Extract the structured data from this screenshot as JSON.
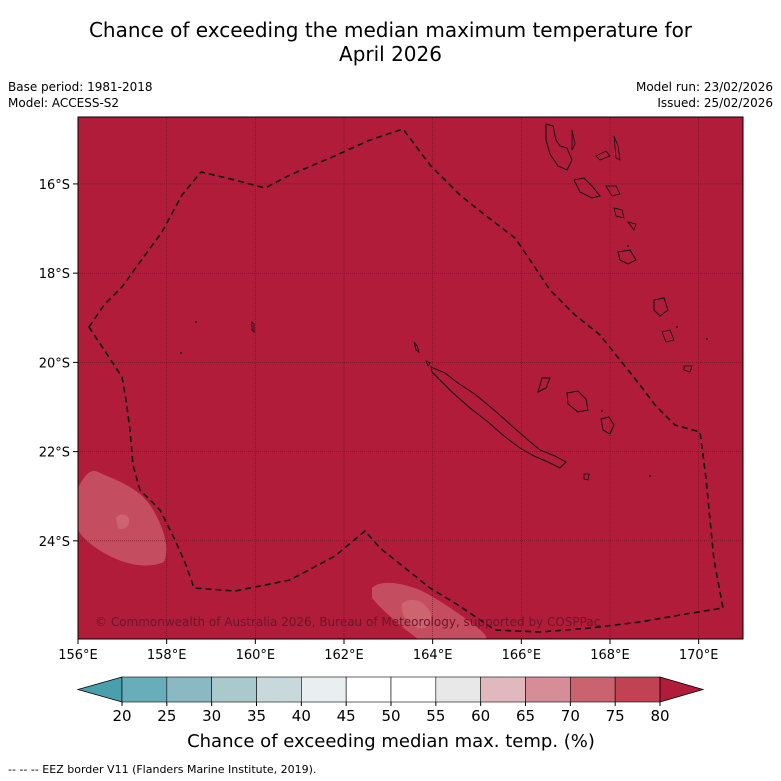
{
  "header": {
    "title_line1": "Chance of exceeding the median maximum temperature for",
    "title_line2": "April 2026",
    "base_period": "Base period: 1981-2018",
    "model": "Model: ACCESS-S2",
    "model_run": "Model run: 23/02/2026",
    "issued": "Issued: 25/02/2026"
  },
  "map": {
    "lat_labels": [
      "16°S",
      "18°S",
      "20°S",
      "22°S",
      "24°S"
    ],
    "lat_values": [
      -16,
      -18,
      -20,
      -22,
      -24
    ],
    "lon_labels": [
      "156°E",
      "158°E",
      "160°E",
      "162°E",
      "164°E",
      "166°E",
      "168°E",
      "170°E"
    ],
    "lon_values": [
      156,
      158,
      160,
      162,
      164,
      166,
      168,
      170
    ],
    "lon_range": [
      156,
      171
    ],
    "lat_range": [
      -26.2,
      -14.5
    ],
    "copyright": "© Commonwealth of Australia 2026, Bureau of Meteorology, supported by COSPPac",
    "background_color": "#b01c3a",
    "eez_color": "#111111"
  },
  "colorbar": {
    "tick_labels": [
      "20",
      "25",
      "30",
      "35",
      "40",
      "45",
      "50",
      "55",
      "60",
      "65",
      "70",
      "75",
      "80"
    ],
    "colors": [
      "#67aeba",
      "#8ab9c3",
      "#a9c9cd",
      "#c8d9dc",
      "#e9eff0",
      "#ffffff",
      "#ffffff",
      "#e8e8e8",
      "#e0b9bf",
      "#d68d97",
      "#c96370",
      "#c04253"
    ],
    "under_color": "#4a9fae",
    "over_color": "#b01c3a",
    "label": "Chance of exceeding median max. temp. (%)"
  },
  "footer": {
    "legend_text": "--  --  -- EEZ border V11 (Flanders Marine Institute, 2019)."
  }
}
